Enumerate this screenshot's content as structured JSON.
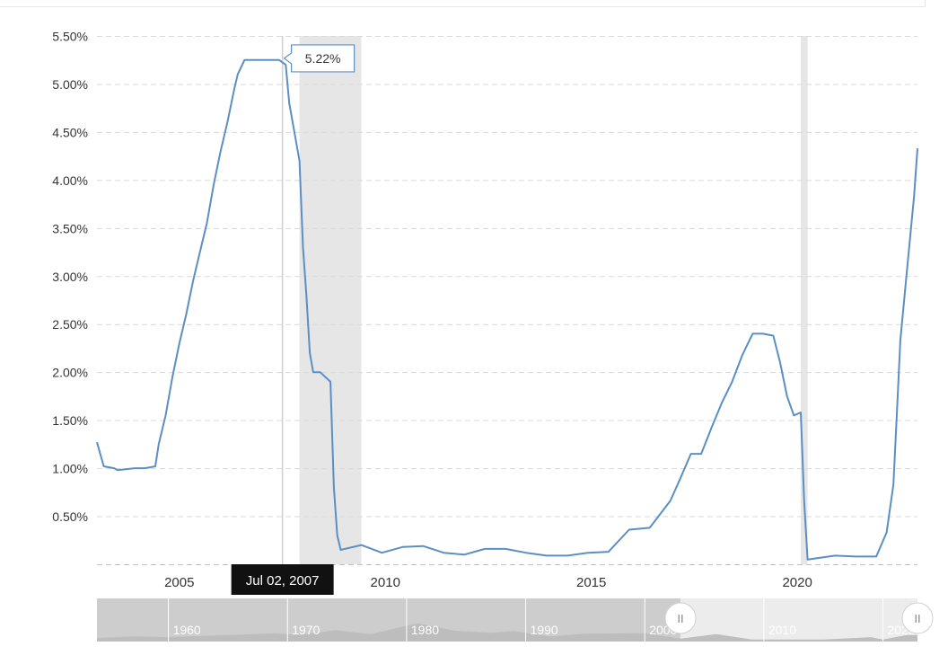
{
  "chart_data": {
    "type": "line",
    "title": "",
    "xlabel": "",
    "ylabel": "",
    "ylim": [
      0,
      5.5
    ],
    "y_ticks": [
      "0.50%",
      "1.00%",
      "1.50%",
      "2.00%",
      "2.50%",
      "3.00%",
      "3.50%",
      "4.00%",
      "4.50%",
      "5.00%",
      "5.50%"
    ],
    "x_ticks": [
      "2005",
      "2010",
      "2015",
      "2020"
    ],
    "xlim": [
      "2003-01",
      "2022-12"
    ],
    "grid": "horizontal dashed",
    "line_color": "#5b8fc4",
    "recession_bands": [
      {
        "start": "2007-12",
        "end": "2009-06"
      },
      {
        "start": "2020-02",
        "end": "2020-04"
      }
    ],
    "series": [
      {
        "x": [
          "2003-01",
          "2003-03",
          "2003-06",
          "2003-07",
          "2003-12",
          "2004-03",
          "2004-06",
          "2004-07",
          "2004-09",
          "2004-11",
          "2005-01",
          "2005-03",
          "2005-05",
          "2005-07",
          "2005-09",
          "2005-11",
          "2006-01",
          "2006-03",
          "2006-05",
          "2006-06",
          "2006-08",
          "2006-12",
          "2007-03",
          "2007-06",
          "2007-08",
          "2007-09",
          "2007-10",
          "2007-12",
          "2008-01",
          "2008-02",
          "2008-03",
          "2008-04",
          "2008-06",
          "2008-09",
          "2008-10",
          "2008-11",
          "2008-12",
          "2009-06",
          "2009-12",
          "2010-06",
          "2010-12",
          "2011-06",
          "2011-12",
          "2012-06",
          "2012-12",
          "2013-06",
          "2013-12",
          "2014-06",
          "2014-12",
          "2015-06",
          "2015-12",
          "2016-06",
          "2016-12",
          "2017-03",
          "2017-06",
          "2017-09",
          "2017-12",
          "2018-03",
          "2018-06",
          "2018-09",
          "2018-12",
          "2019-03",
          "2019-06",
          "2019-08",
          "2019-10",
          "2019-12",
          "2020-02",
          "2020-03",
          "2020-04",
          "2020-12",
          "2021-06",
          "2021-12",
          "2022-03",
          "2022-05",
          "2022-06",
          "2022-07",
          "2022-09",
          "2022-11",
          "2022-12"
        ],
        "y": [
          1.27,
          1.02,
          1.0,
          0.98,
          1.0,
          1.0,
          1.02,
          1.25,
          1.55,
          1.95,
          2.3,
          2.6,
          2.95,
          3.25,
          3.55,
          3.95,
          4.3,
          4.6,
          4.95,
          5.1,
          5.25,
          5.25,
          5.25,
          5.25,
          5.2,
          4.8,
          4.6,
          4.2,
          3.3,
          2.8,
          2.2,
          2.0,
          2.0,
          1.9,
          0.8,
          0.3,
          0.15,
          0.2,
          0.12,
          0.18,
          0.19,
          0.12,
          0.1,
          0.16,
          0.16,
          0.12,
          0.09,
          0.09,
          0.12,
          0.13,
          0.36,
          0.38,
          0.66,
          0.9,
          1.15,
          1.15,
          1.42,
          1.68,
          1.9,
          2.18,
          2.4,
          2.4,
          2.38,
          2.1,
          1.75,
          1.55,
          1.58,
          0.65,
          0.05,
          0.09,
          0.08,
          0.08,
          0.33,
          0.83,
          1.58,
          2.33,
          3.08,
          3.83,
          4.33
        ]
      }
    ],
    "tooltip": {
      "date": "Jul 02, 2007",
      "value": "5.22%"
    },
    "navigator": {
      "ticks": [
        "1960",
        "1970",
        "1980",
        "1990",
        "2000",
        "2010",
        "2020"
      ],
      "handle_glyph": "II"
    }
  }
}
